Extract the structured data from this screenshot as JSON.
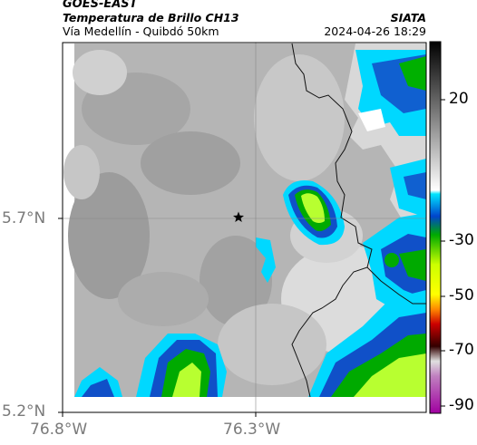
{
  "header": {
    "satellite": "GOES-EAST",
    "product": "Temperatura de Brillo CH13",
    "region": "Vía Medellín - Quibdó 50km",
    "agency": "SIATA",
    "timestamp": "2024-04-26 18:29"
  },
  "axes": {
    "y_ticks": [
      "5.7°N",
      "5.2°N"
    ],
    "x_ticks": [
      "76.8°W",
      "76.3°W"
    ]
  },
  "colorbar": {
    "ticks": [
      "20",
      "-30",
      "-50",
      "-70",
      "-90"
    ],
    "min": -95,
    "max": 30
  },
  "map": {
    "marker": "star-icon",
    "gridline_color": "#888888"
  }
}
